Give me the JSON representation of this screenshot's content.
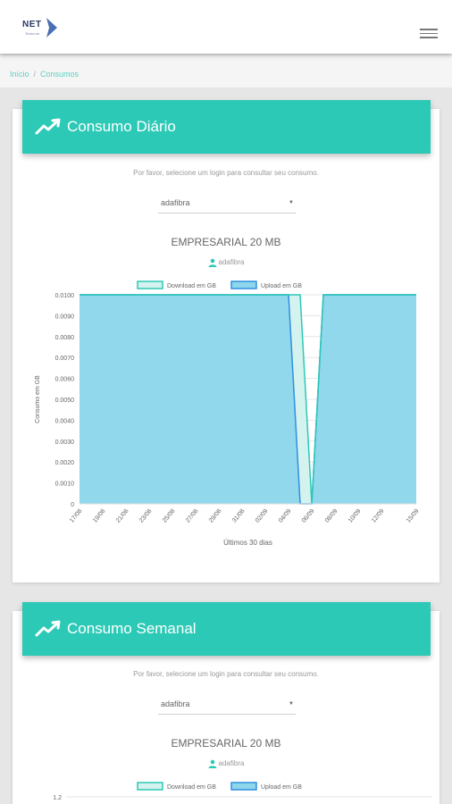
{
  "app": {
    "logo_text": "NET",
    "logo_sub": "Telecom"
  },
  "breadcrumb": [
    "Início",
    "Consumos"
  ],
  "cards": [
    {
      "title": "Consumo Diário",
      "hint": "Por favor, selecione um login para consultar seu consumo.",
      "select_value": "adafibra",
      "plan_title": "EMPRESARIAL 20 MB",
      "user": "adafibra"
    },
    {
      "title": "Consumo Semanal",
      "hint": "Por favor, selecione um login para consultar seu consumo.",
      "select_value": "adafibra",
      "plan_title": "EMPRESARIAL 20 MB",
      "user": "adafibra"
    }
  ],
  "colors": {
    "accent": "#2cc9b6",
    "download_fill": "#d4f2ee",
    "download_line": "#2cc9b6",
    "upload_fill": "#8dd6ec",
    "upload_line": "#2f8fe0"
  },
  "chart_data": [
    {
      "type": "area",
      "title": "",
      "legend": [
        "Download em GB",
        "Upload em GB"
      ],
      "legend_position": "top",
      "xlabel": "Últimos 30 dias",
      "ylabel": "Consumo em GB",
      "yticks": [
        "0.0100",
        "0.0090",
        "0.0080",
        "0.0070",
        "0.0060",
        "0.0050",
        "0.0040",
        "0.0030",
        "0.0020",
        "0.0010",
        "0"
      ],
      "ylim": [
        0,
        0.01
      ],
      "x": [
        "17/08",
        "18/08",
        "19/08",
        "20/08",
        "21/08",
        "22/08",
        "23/08",
        "24/08",
        "25/08",
        "26/08",
        "27/08",
        "28/08",
        "29/08",
        "30/08",
        "31/08",
        "01/09",
        "02/09",
        "03/09",
        "04/09",
        "05/09",
        "06/09",
        "07/09",
        "08/09",
        "09/09",
        "10/09",
        "11/09",
        "12/09",
        "13/09",
        "14/09",
        "15/09"
      ],
      "xtick_labels": [
        "17/08",
        "19/08",
        "21/08",
        "23/08",
        "25/08",
        "27/08",
        "29/08",
        "31/08",
        "02/09",
        "04/09",
        "06/09",
        "08/09",
        "10/09",
        "12/09",
        "15/09"
      ],
      "series": [
        {
          "name": "Download em GB",
          "values": [
            0.01,
            0.01,
            0.01,
            0.01,
            0.01,
            0.01,
            0.01,
            0.01,
            0.01,
            0.01,
            0.01,
            0.01,
            0.01,
            0.01,
            0.01,
            0.01,
            0.01,
            0.01,
            0.01,
            0.01,
            0,
            0.01,
            0.01,
            0.01,
            0.01,
            0.01,
            0.01,
            0.01,
            0.01,
            0.01
          ]
        },
        {
          "name": "Upload em GB",
          "values": [
            0.01,
            0.01,
            0.01,
            0.01,
            0.01,
            0.01,
            0.01,
            0.01,
            0.01,
            0.01,
            0.01,
            0.01,
            0.01,
            0.01,
            0.01,
            0.01,
            0.01,
            0.01,
            0.01,
            0,
            0,
            0.01,
            0.01,
            0.01,
            0.01,
            0.01,
            0.01,
            0.01,
            0.01,
            0.01
          ]
        }
      ]
    },
    {
      "type": "area",
      "title": "",
      "legend": [
        "Download em GB",
        "Upload em GB"
      ],
      "legend_position": "top",
      "yticks": [
        "1.2"
      ]
    }
  ]
}
